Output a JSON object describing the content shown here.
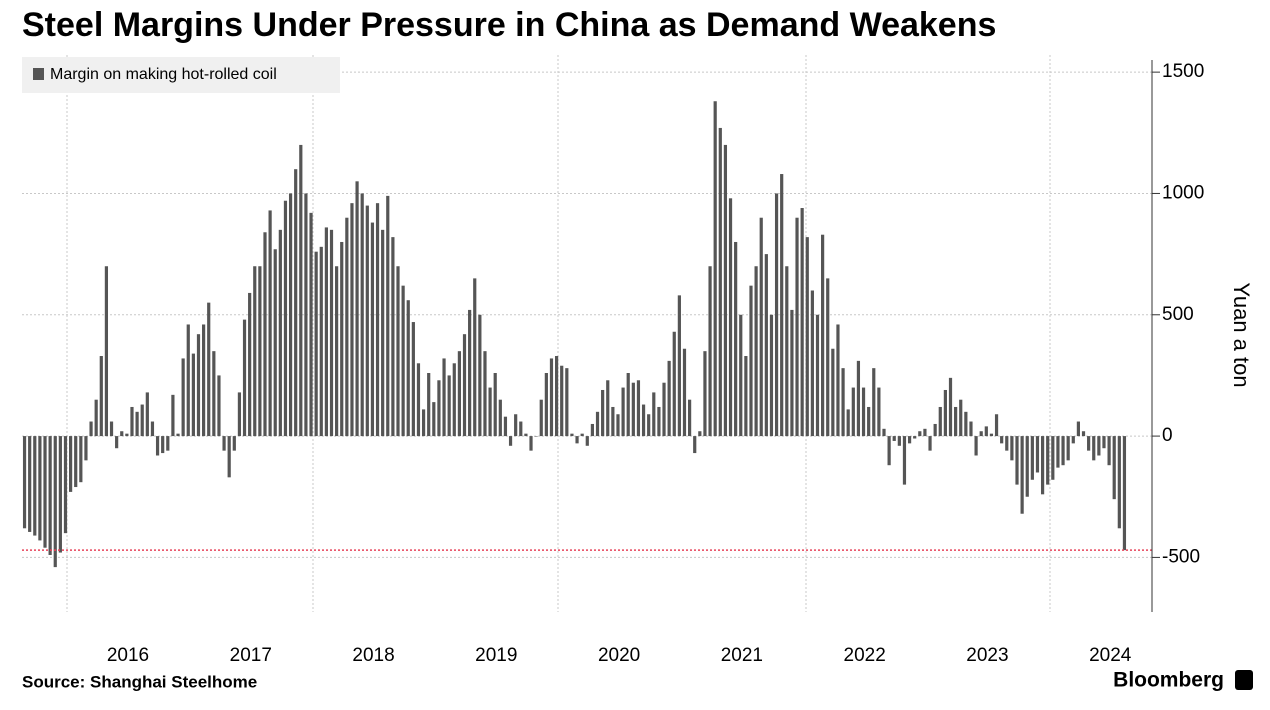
{
  "chart_data": {
    "type": "bar",
    "title": "Steel Margins Under Pressure in China as Demand Weakens",
    "y_label": "Yuan a ton",
    "source": "Source: Shanghai Steelhome",
    "brand": "Bloomberg",
    "ylim": [
      -725,
      1550
    ],
    "yticks": [
      -500,
      0,
      500,
      1000,
      1500
    ],
    "grid": true,
    "legend": "top-left",
    "reference_line": {
      "value": -470,
      "color": "#e8435a"
    },
    "categories": [
      null,
      null,
      null,
      null,
      null,
      null,
      null,
      null,
      null,
      null,
      null,
      null,
      null,
      null,
      null,
      null,
      null,
      null,
      null,
      null,
      null,
      "2016",
      null,
      null,
      null,
      null,
      null,
      null,
      null,
      null,
      null,
      null,
      null,
      null,
      null,
      null,
      null,
      null,
      null,
      null,
      null,
      null,
      null,
      null,
      null,
      "2017",
      null,
      null,
      null,
      null,
      null,
      null,
      null,
      null,
      null,
      null,
      null,
      null,
      null,
      null,
      null,
      null,
      null,
      null,
      null,
      null,
      null,
      null,
      null,
      "2018",
      null,
      null,
      null,
      null,
      null,
      null,
      null,
      null,
      null,
      null,
      null,
      null,
      null,
      null,
      null,
      null,
      null,
      null,
      null,
      null,
      null,
      null,
      null,
      "2019",
      null,
      null,
      null,
      null,
      null,
      null,
      null,
      null,
      null,
      null,
      null,
      null,
      null,
      null,
      null,
      null,
      null,
      null,
      null,
      null,
      null,
      null,
      null,
      "2020",
      null,
      null,
      null,
      null,
      null,
      null,
      null,
      null,
      null,
      null,
      null,
      null,
      null,
      null,
      null,
      null,
      null,
      null,
      null,
      null,
      null,
      null,
      null,
      "2021",
      null,
      null,
      null,
      null,
      null,
      null,
      null,
      null,
      null,
      null,
      null,
      null,
      null,
      null,
      null,
      null,
      null,
      null,
      null,
      null,
      null,
      null,
      null,
      "2022",
      null,
      null,
      null,
      null,
      null,
      null,
      null,
      null,
      null,
      null,
      null,
      null,
      null,
      null,
      null,
      null,
      null,
      null,
      null,
      null,
      null,
      null,
      null,
      "2023",
      null,
      null,
      null,
      null,
      null,
      null,
      null,
      null,
      null,
      null,
      null,
      null,
      null,
      null,
      null,
      null,
      null,
      null,
      null,
      null,
      null,
      null,
      null,
      "2024",
      null,
      null
    ],
    "series": [
      {
        "name": "Margin on making hot-rolled coil",
        "color": "#555555",
        "values": [
          -380,
          -395,
          -410,
          -430,
          -460,
          -490,
          -540,
          -480,
          -400,
          -230,
          -210,
          -190,
          -100,
          60,
          150,
          330,
          700,
          60,
          -50,
          20,
          10,
          120,
          100,
          130,
          180,
          60,
          -80,
          -70,
          -60,
          170,
          10,
          320,
          460,
          340,
          420,
          460,
          550,
          350,
          250,
          -60,
          -170,
          -60,
          180,
          480,
          590,
          700,
          700,
          840,
          930,
          770,
          850,
          970,
          1000,
          1100,
          1200,
          1000,
          920,
          760,
          780,
          860,
          850,
          700,
          800,
          900,
          960,
          1050,
          1000,
          950,
          880,
          960,
          850,
          990,
          820,
          700,
          620,
          560,
          470,
          300,
          110,
          260,
          140,
          230,
          320,
          250,
          300,
          350,
          420,
          520,
          650,
          500,
          350,
          200,
          260,
          150,
          80,
          -40,
          90,
          60,
          10,
          -60,
          0,
          150,
          260,
          320,
          330,
          290,
          280,
          10,
          -30,
          10,
          -40,
          50,
          100,
          190,
          230,
          120,
          90,
          200,
          260,
          220,
          230,
          130,
          90,
          180,
          120,
          220,
          310,
          430,
          580,
          360,
          150,
          -70,
          20,
          350,
          700,
          1380,
          1270,
          1200,
          980,
          800,
          500,
          330,
          620,
          700,
          900,
          750,
          500,
          1000,
          1080,
          700,
          520,
          900,
          940,
          820,
          600,
          500,
          830,
          650,
          360,
          460,
          280,
          110,
          200,
          310,
          200,
          120,
          280,
          200,
          30,
          -120,
          -20,
          -40,
          -200,
          -30,
          -10,
          20,
          30,
          -60,
          50,
          120,
          190,
          240,
          120,
          150,
          100,
          60,
          -80,
          20,
          40,
          10,
          90,
          -30,
          -60,
          -100,
          -200,
          -320,
          -250,
          -180,
          -150,
          -240,
          -200,
          -180,
          -130,
          -120,
          -100,
          -30,
          60,
          20,
          -60,
          -100,
          -80,
          -50,
          -120,
          -260,
          -380,
          -470
        ]
      }
    ]
  }
}
